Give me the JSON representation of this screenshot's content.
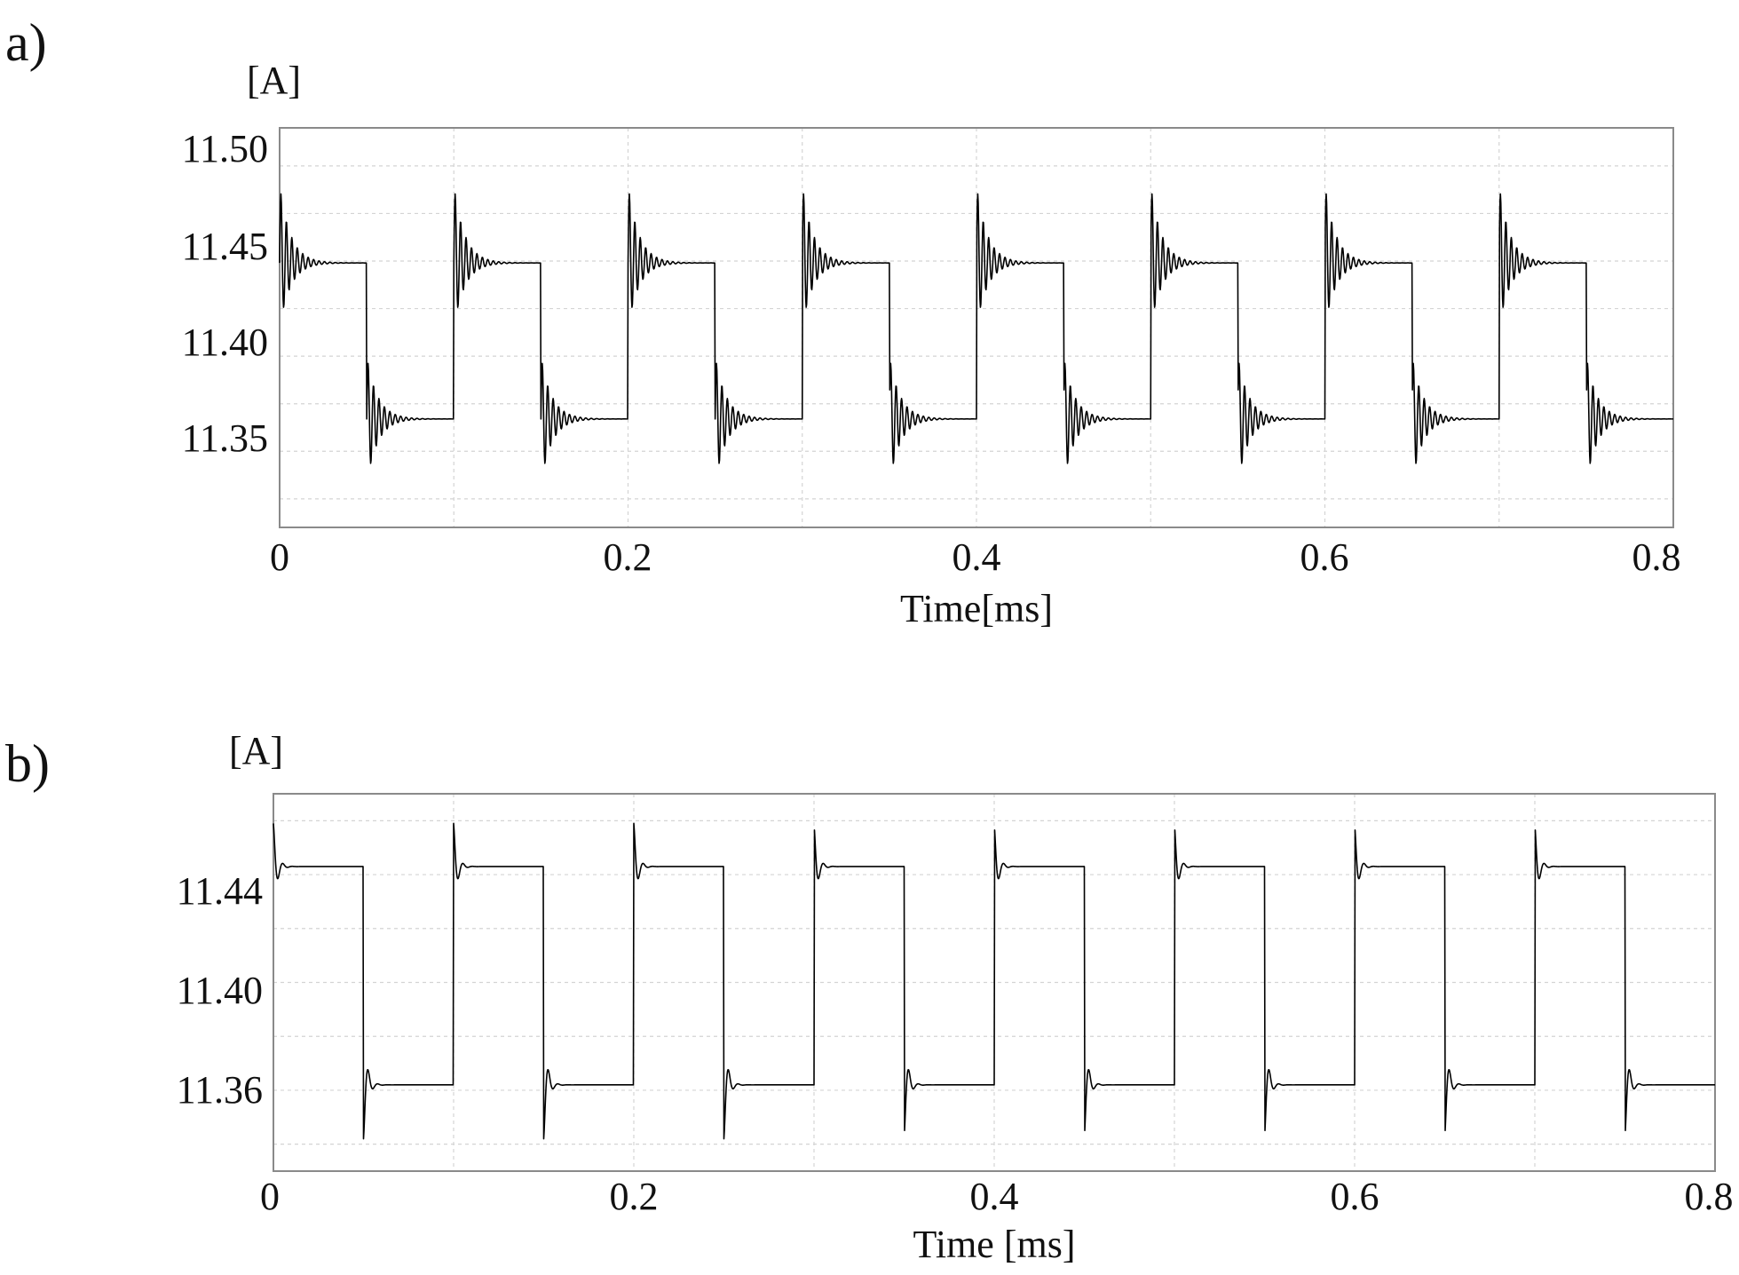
{
  "colors": {
    "background": "#ffffff",
    "trace": "#000000",
    "frame": "#8a8a8a",
    "grid": "#d4d4d4"
  },
  "panels": [
    {
      "panel_label": "a)",
      "unit_label": "[A]",
      "chart_data": {
        "type": "line",
        "title": "",
        "xlabel": "Time[ms]",
        "ylabel": "[A]",
        "xlim": [
          0,
          0.8
        ],
        "ylim": [
          11.31,
          11.52
        ],
        "xticks": [
          0,
          0.2,
          0.4,
          0.6,
          0.8
        ],
        "xtick_labels": [
          "0",
          "0.2",
          "0.4",
          "0.6",
          "0.8"
        ],
        "yticks": [
          11.5,
          11.45,
          11.4,
          11.35
        ],
        "ytick_labels": [
          "11.50",
          "11.45",
          "11.40",
          "11.35"
        ],
        "grid": true,
        "legend": "none",
        "waveform": {
          "shape": "square wave with decaying ringing after each switching edge",
          "period_ms": 0.1,
          "duty": 0.5,
          "high_level": 11.449,
          "low_level": 11.367,
          "cycles": 8,
          "ringing_peak_high": 11.49,
          "ringing_trough_high": 11.415,
          "ringing_peak_low": 11.4,
          "ringing_trough_low": 11.333,
          "settle_ms": 0.025
        }
      }
    },
    {
      "panel_label": "b)",
      "unit_label": "[A]",
      "chart_data": {
        "type": "line",
        "title": "",
        "xlabel": "Time [ms]",
        "ylabel": "[A]",
        "xlim": [
          0,
          0.8
        ],
        "ylim": [
          11.33,
          11.47
        ],
        "xticks": [
          0,
          0.2,
          0.4,
          0.6,
          0.8
        ],
        "xtick_labels": [
          "0",
          "0.2",
          "0.4",
          "0.6",
          "0.8"
        ],
        "yticks": [
          11.44,
          11.4,
          11.36
        ],
        "ytick_labels": [
          "11.44",
          "11.40",
          "11.36"
        ],
        "grid": true,
        "legend": "none",
        "waveform": {
          "shape": "square wave with a short overshoot spike after each switching edge",
          "period_ms": 0.1,
          "duty": 0.5,
          "high_level": 11.443,
          "low_level": 11.362,
          "cycles": 8,
          "spike_high": 11.459,
          "spike_low": 11.342,
          "settle_ms": 0.006
        }
      }
    }
  ]
}
